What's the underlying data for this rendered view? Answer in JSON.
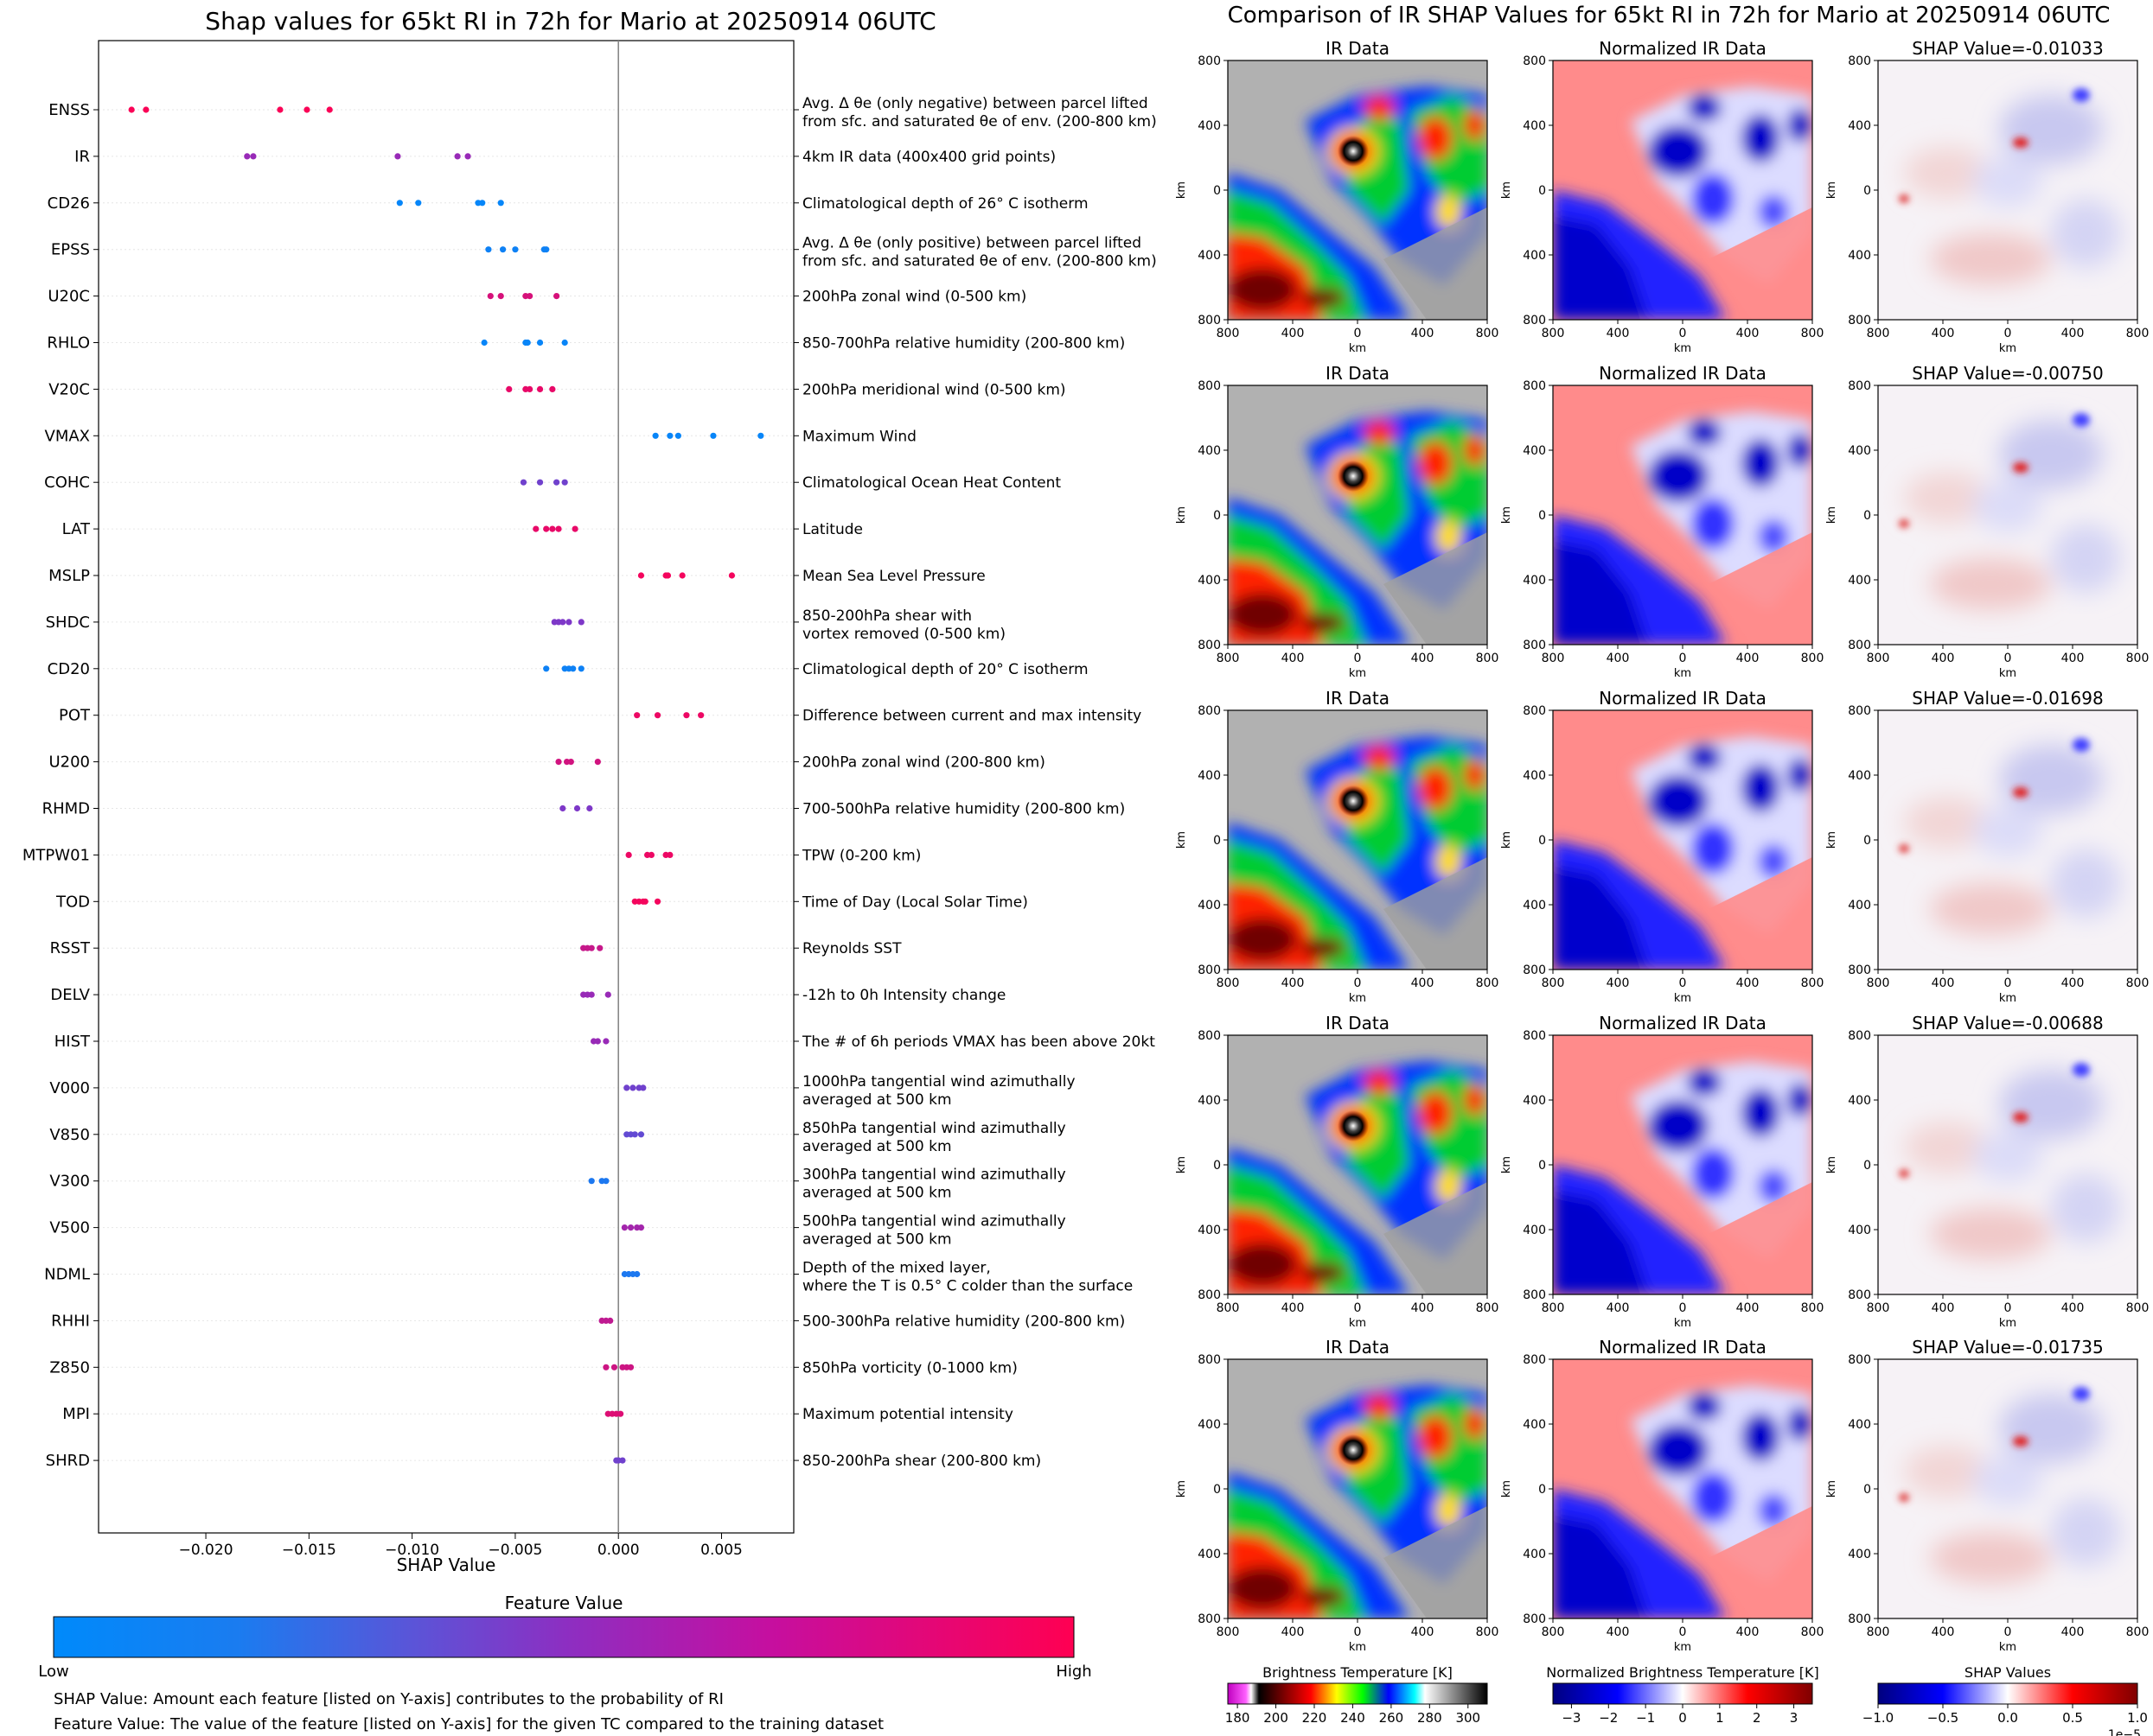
{
  "chart_data": [
    {
      "type": "scatter",
      "title": "Shap values for 65kt RI in 72h for Mario at 20250914 06UTC",
      "xlabel": "SHAP Value",
      "xlim": [
        -0.0252,
        0.0085
      ],
      "xticks": [
        -0.02,
        -0.015,
        -0.01,
        -0.005,
        0.0,
        0.005
      ],
      "xtick_labels": [
        "−0.020",
        "−0.015",
        "−0.010",
        "−0.005",
        "0.000",
        "0.005"
      ],
      "colorbar": {
        "title": "Feature Value",
        "low": "Low",
        "high": "High",
        "low_color": "#008afb",
        "mid_color": "#8c2fc2",
        "high_color": "#ff0052"
      },
      "notes": [
        "SHAP Value: Amount each feature [listed on Y-axis] contributes to the probability of RI",
        "Feature Value: The value of the feature [listed on Y-axis] for the given TC compared to the training dataset"
      ],
      "features": [
        {
          "name": "ENSS",
          "desc": [
            "Avg. Δ θe (only negative) between parcel lifted",
            "from sfc. and saturated θe of env. (200-800 km)"
          ],
          "values": [
            -0.0236,
            -0.0229,
            -0.0164,
            -0.0151,
            -0.014
          ],
          "level": 0.98
        },
        {
          "name": "IR",
          "desc": [
            "4km IR data (400x400 grid points)"
          ],
          "values": [
            -0.018,
            -0.0177,
            -0.0107,
            -0.0078,
            -0.0073
          ],
          "level": 0.55
        },
        {
          "name": "CD26",
          "desc": [
            "Climatological depth of 26° C isotherm"
          ],
          "values": [
            -0.0106,
            -0.0097,
            -0.0068,
            -0.0066,
            -0.0057
          ],
          "level": 0.02
        },
        {
          "name": "EPSS",
          "desc": [
            "Avg. Δ θe (only positive) between parcel lifted",
            "from sfc. and saturated θe of env. (200-800 km)"
          ],
          "values": [
            -0.0063,
            -0.0056,
            -0.005,
            -0.0036,
            -0.0035
          ],
          "level": 0.05
        },
        {
          "name": "U20C",
          "desc": [
            "200hPa zonal wind (0-500 km)"
          ],
          "values": [
            -0.0062,
            -0.0057,
            -0.0045,
            -0.0043,
            -0.003
          ],
          "level": 0.82
        },
        {
          "name": "RHLO",
          "desc": [
            "850-700hPa relative humidity (200-800 km)"
          ],
          "values": [
            -0.0065,
            -0.0045,
            -0.0044,
            -0.0038,
            -0.0026
          ],
          "level": 0.03
        },
        {
          "name": "V20C",
          "desc": [
            "200hPa meridional wind (0-500 km)"
          ],
          "values": [
            -0.0053,
            -0.0045,
            -0.0043,
            -0.0038,
            -0.0032
          ],
          "level": 0.9
        },
        {
          "name": "VMAX",
          "desc": [
            "Maximum Wind"
          ],
          "values": [
            0.0018,
            0.0025,
            0.0029,
            0.0046,
            0.0069
          ],
          "level": 0.03
        },
        {
          "name": "COHC",
          "desc": [
            "Climatological Ocean Heat Content"
          ],
          "values": [
            -0.0046,
            -0.0038,
            -0.003,
            -0.0026
          ],
          "level": 0.4
        },
        {
          "name": "LAT",
          "desc": [
            "Latitude"
          ],
          "values": [
            -0.004,
            -0.0035,
            -0.0032,
            -0.0029,
            -0.0021
          ],
          "level": 0.9
        },
        {
          "name": "MSLP",
          "desc": [
            "Mean Sea Level Pressure"
          ],
          "values": [
            0.0011,
            0.0023,
            0.0024,
            0.0031,
            0.0055
          ],
          "level": 0.95
        },
        {
          "name": "SHDC",
          "desc": [
            "850-200hPa shear with",
            "vortex removed (0-500 km)"
          ],
          "values": [
            -0.0031,
            -0.0029,
            -0.0027,
            -0.0024,
            -0.0018
          ],
          "level": 0.45
        },
        {
          "name": "CD20",
          "desc": [
            "Climatological depth of 20° C isotherm"
          ],
          "values": [
            -0.0035,
            -0.0026,
            -0.0024,
            -0.0022,
            -0.0018
          ],
          "level": 0.05
        },
        {
          "name": "POT",
          "desc": [
            "Difference between current and max intensity"
          ],
          "values": [
            0.0009,
            0.0019,
            0.0033,
            0.004
          ],
          "level": 0.92
        },
        {
          "name": "U200",
          "desc": [
            "200hPa zonal wind (200-800 km)"
          ],
          "values": [
            -0.0029,
            -0.0025,
            -0.0023,
            -0.001
          ],
          "level": 0.8
        },
        {
          "name": "RHMD",
          "desc": [
            "700-500hPa relative humidity (200-800 km)"
          ],
          "values": [
            -0.0027,
            -0.002,
            -0.0014
          ],
          "level": 0.45
        },
        {
          "name": "MTPW01",
          "desc": [
            "TPW (0-200 km)"
          ],
          "values": [
            0.0005,
            0.0014,
            0.0016,
            0.0023,
            0.0025
          ],
          "level": 0.92
        },
        {
          "name": "TOD",
          "desc": [
            "Time of Day (Local Solar Time)"
          ],
          "values": [
            0.0008,
            0.001,
            0.0012,
            0.0013,
            0.0019
          ],
          "level": 0.95
        },
        {
          "name": "RSST",
          "desc": [
            "Reynolds SST"
          ],
          "values": [
            -0.0017,
            -0.0015,
            -0.0013,
            -0.0009
          ],
          "level": 0.75
        },
        {
          "name": "DELV",
          "desc": [
            "-12h to 0h Intensity change"
          ],
          "values": [
            -0.0017,
            -0.0015,
            -0.0013,
            -0.0005
          ],
          "level": 0.55
        },
        {
          "name": "HIST",
          "desc": [
            "The # of 6h periods VMAX has been above 20kt"
          ],
          "values": [
            -0.0012,
            -0.001,
            -0.0006
          ],
          "level": 0.55
        },
        {
          "name": "V000",
          "desc": [
            "1000hPa tangential wind azimuthally",
            "averaged at 500 km"
          ],
          "values": [
            0.0004,
            0.0007,
            0.001,
            0.0012
          ],
          "level": 0.4
        },
        {
          "name": "V850",
          "desc": [
            "850hPa tangential wind azimuthally",
            "averaged at 500 km"
          ],
          "values": [
            0.0004,
            0.0006,
            0.0008,
            0.0011
          ],
          "level": 0.35
        },
        {
          "name": "V300",
          "desc": [
            "300hPa tangential wind azimuthally",
            "averaged at 500 km"
          ],
          "values": [
            -0.0013,
            -0.0008,
            -0.0006
          ],
          "level": 0.1
        },
        {
          "name": "V500",
          "desc": [
            "500hPa tangential wind azimuthally",
            "averaged at 500 km"
          ],
          "values": [
            0.0003,
            0.0006,
            0.0009,
            0.0011
          ],
          "level": 0.6
        },
        {
          "name": "NDML",
          "desc": [
            "Depth of the mixed layer,",
            "where the T is 0.5° C colder than the surface"
          ],
          "values": [
            0.0003,
            0.0005,
            0.0007,
            0.0009
          ],
          "level": 0.1
        },
        {
          "name": "RHHI",
          "desc": [
            "500-300hPa relative humidity (200-800 km)"
          ],
          "values": [
            -0.0008,
            -0.0006,
            -0.0004
          ],
          "level": 0.72
        },
        {
          "name": "Z850",
          "desc": [
            "850hPa vorticity (0-1000 km)"
          ],
          "values": [
            -0.0006,
            -0.0002,
            0.0002,
            0.0004,
            0.0006
          ],
          "level": 0.78
        },
        {
          "name": "MPI",
          "desc": [
            "Maximum potential intensity"
          ],
          "values": [
            -0.0005,
            -0.0003,
            -0.0001,
            0.0001
          ],
          "level": 0.85
        },
        {
          "name": "SHRD",
          "desc": [
            "850-200hPa shear (200-800 km)"
          ],
          "values": [
            -0.0001,
            0.0,
            0.0002
          ],
          "level": 0.4
        }
      ]
    },
    {
      "type": "heatmap",
      "title": "Comparison of IR SHAP Values for 65kt RI in 72h for Mario at 20250914 06UTC",
      "column_titles": [
        "IR Data",
        "Normalized IR Data"
      ],
      "shap_titles": [
        "SHAP Value=-0.01033",
        "SHAP Value=-0.00750",
        "SHAP Value=-0.01698",
        "SHAP Value=-0.00688",
        "SHAP Value=-0.01735"
      ],
      "axis_unit": "km",
      "xticks": [
        "800",
        "400",
        "0",
        "400",
        "800"
      ],
      "yticks": [
        "800",
        "400",
        "0",
        "400",
        "800"
      ],
      "colorbars": [
        {
          "label": "Brightness Temperature [K]",
          "ticks": [
            "180",
            "200",
            "220",
            "240",
            "260",
            "280",
            "300"
          ],
          "range": [
            175,
            310
          ]
        },
        {
          "label": "Normalized Brightness Temperature [K]",
          "ticks": [
            "−3",
            "−2",
            "−1",
            "0",
            "1",
            "2",
            "3"
          ],
          "range": [
            -3.5,
            3.5
          ]
        },
        {
          "label": "SHAP Values",
          "ticks": [
            "−1.0",
            "−0.5",
            "0.0",
            "0.5",
            "1.0"
          ],
          "range": [
            -1.0,
            1.0
          ],
          "multiplier": "1e−5"
        }
      ]
    }
  ]
}
